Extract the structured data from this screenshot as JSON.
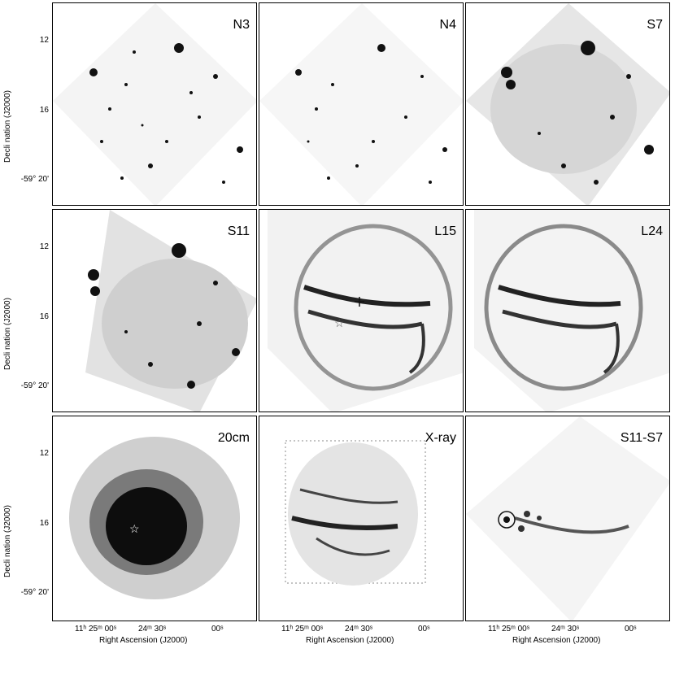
{
  "panels": [
    {
      "label": "N3"
    },
    {
      "label": "N4"
    },
    {
      "label": "S7"
    },
    {
      "label": "S11"
    },
    {
      "label": "L15"
    },
    {
      "label": "L24"
    },
    {
      "label": "20cm"
    },
    {
      "label": "X-ray"
    },
    {
      "label": "S11-S7"
    }
  ],
  "axes": {
    "y_label": "Decli nation (J2000)",
    "x_label": "Right Ascension (J2000)",
    "y_ticks": [
      "12",
      "16",
      "-59° 20'"
    ],
    "x_ticks": [
      "11ʰ 25ᵐ 00ˢ",
      "24ᵐ 30ˢ",
      "00ˢ"
    ]
  }
}
